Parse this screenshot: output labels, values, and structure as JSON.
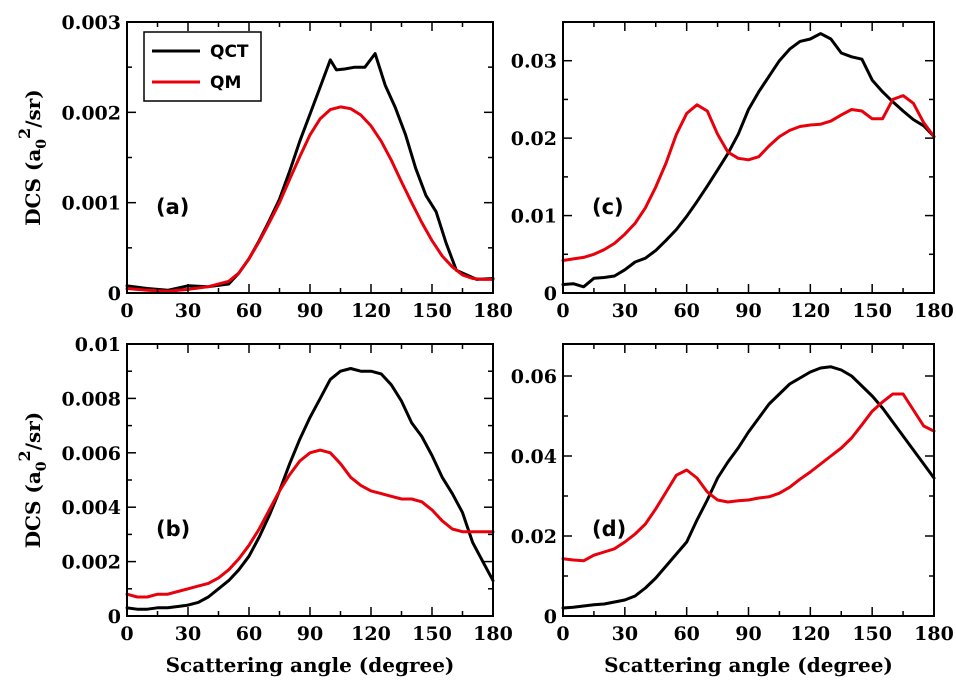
{
  "chart_data": [
    {
      "type": "line",
      "panel_label": "(a)",
      "ylabel": "DCS (a0^2/sr)",
      "xlabel": "",
      "xlim": [
        0,
        180
      ],
      "ylim": [
        0,
        0.003
      ],
      "xticks": [
        "0",
        "30",
        "60",
        "90",
        "120",
        "150",
        "180"
      ],
      "yticks": [
        "0",
        "0.001",
        "0.002",
        "0.003"
      ],
      "legend": {
        "position": "top-left",
        "entries": [
          "QCT",
          "QM"
        ]
      },
      "series": [
        {
          "name": "QCT",
          "color": "#000000",
          "x": [
            0,
            10,
            20,
            30,
            40,
            50,
            55,
            60,
            65,
            70,
            75,
            80,
            85,
            90,
            95,
            100,
            103,
            107,
            112,
            117,
            122,
            127,
            132,
            137,
            142,
            147,
            152,
            157,
            162,
            167,
            172,
            180
          ],
          "y": [
            8e-05,
            5e-05,
            3e-05,
            8e-05,
            7e-05,
            0.0001,
            0.00022,
            0.00038,
            0.00058,
            0.0008,
            0.00104,
            0.00135,
            0.00168,
            0.00198,
            0.00228,
            0.00258,
            0.00247,
            0.00248,
            0.0025,
            0.0025,
            0.00265,
            0.0023,
            0.00205,
            0.00175,
            0.00138,
            0.00108,
            0.0009,
            0.00055,
            0.00025,
            0.0002,
            0.00015,
            0.00016
          ]
        },
        {
          "name": "QM",
          "color": "#e8000b",
          "x": [
            0,
            10,
            20,
            30,
            40,
            50,
            55,
            60,
            65,
            70,
            75,
            80,
            85,
            90,
            95,
            100,
            105,
            110,
            115,
            120,
            125,
            130,
            135,
            140,
            145,
            150,
            155,
            160,
            165,
            170,
            175,
            180
          ],
          "y": [
            5e-05,
            3e-05,
            2e-05,
            4e-05,
            7e-05,
            0.00013,
            0.00022,
            0.00038,
            0.00057,
            0.00078,
            0.001,
            0.00126,
            0.00151,
            0.00175,
            0.00193,
            0.00203,
            0.00206,
            0.00204,
            0.00197,
            0.00185,
            0.00168,
            0.00147,
            0.00123,
            0.001,
            0.00078,
            0.00058,
            0.00041,
            0.00029,
            0.0002,
            0.00016,
            0.00015,
            0.00015
          ]
        }
      ]
    },
    {
      "type": "line",
      "panel_label": "(c)",
      "ylabel": "",
      "xlabel": "",
      "xlim": [
        0,
        180
      ],
      "ylim": [
        0,
        0.035
      ],
      "xticks": [
        "0",
        "30",
        "60",
        "90",
        "120",
        "150",
        "180"
      ],
      "yticks": [
        "0",
        "0.01",
        "0.02",
        "0.03"
      ],
      "series": [
        {
          "name": "QCT",
          "color": "#000000",
          "x": [
            0,
            5,
            10,
            15,
            20,
            25,
            30,
            35,
            40,
            45,
            50,
            55,
            60,
            65,
            70,
            75,
            80,
            85,
            90,
            95,
            100,
            105,
            110,
            115,
            120,
            125,
            130,
            135,
            140,
            145,
            150,
            155,
            160,
            165,
            170,
            175,
            180
          ],
          "y": [
            0.0011,
            0.0012,
            0.0008,
            0.0019,
            0.002,
            0.0022,
            0.003,
            0.004,
            0.0045,
            0.0055,
            0.0068,
            0.0082,
            0.0099,
            0.0118,
            0.0138,
            0.0159,
            0.018,
            0.0205,
            0.0237,
            0.026,
            0.028,
            0.03,
            0.0315,
            0.0325,
            0.0328,
            0.0335,
            0.0328,
            0.031,
            0.0305,
            0.0302,
            0.0275,
            0.026,
            0.0247,
            0.0235,
            0.0224,
            0.0216,
            0.0202
          ]
        },
        {
          "name": "QM",
          "color": "#e8000b",
          "x": [
            0,
            5,
            10,
            15,
            20,
            25,
            30,
            35,
            40,
            45,
            50,
            55,
            60,
            65,
            70,
            75,
            80,
            85,
            90,
            95,
            100,
            105,
            110,
            115,
            120,
            125,
            130,
            135,
            140,
            145,
            150,
            155,
            160,
            165,
            170,
            175,
            180
          ],
          "y": [
            0.0042,
            0.0044,
            0.0046,
            0.005,
            0.0056,
            0.0064,
            0.0076,
            0.009,
            0.011,
            0.0137,
            0.0168,
            0.0205,
            0.0232,
            0.0243,
            0.0235,
            0.0205,
            0.0182,
            0.0174,
            0.0172,
            0.0176,
            0.019,
            0.0202,
            0.021,
            0.0215,
            0.0217,
            0.0218,
            0.0222,
            0.023,
            0.0237,
            0.0235,
            0.0225,
            0.0225,
            0.025,
            0.0255,
            0.0245,
            0.022,
            0.0202
          ]
        }
      ]
    },
    {
      "type": "line",
      "panel_label": "(b)",
      "ylabel": "DCS (a0^2/sr)",
      "xlabel": "Scattering angle (degree)",
      "xlim": [
        0,
        180
      ],
      "ylim": [
        0,
        0.01
      ],
      "xticks": [
        "0",
        "30",
        "60",
        "90",
        "120",
        "150",
        "180"
      ],
      "yticks": [
        "0",
        "0.002",
        "0.004",
        "0.006",
        "0.008",
        "0.01"
      ],
      "series": [
        {
          "name": "QCT",
          "color": "#000000",
          "x": [
            0,
            5,
            10,
            15,
            20,
            25,
            30,
            35,
            40,
            45,
            50,
            55,
            60,
            65,
            70,
            75,
            80,
            85,
            90,
            95,
            100,
            105,
            110,
            115,
            120,
            125,
            130,
            135,
            140,
            145,
            150,
            155,
            160,
            165,
            170,
            175,
            180
          ],
          "y": [
            0.0003,
            0.00025,
            0.00025,
            0.0003,
            0.0003,
            0.00035,
            0.0004,
            0.0005,
            0.0007,
            0.001,
            0.0013,
            0.0017,
            0.0022,
            0.0029,
            0.0037,
            0.0046,
            0.0056,
            0.0065,
            0.0073,
            0.008,
            0.0087,
            0.009,
            0.0091,
            0.009,
            0.009,
            0.0089,
            0.0085,
            0.0079,
            0.0071,
            0.0066,
            0.0059,
            0.0051,
            0.0045,
            0.0038,
            0.0027,
            0.002,
            0.0013
          ]
        },
        {
          "name": "QM",
          "color": "#e8000b",
          "x": [
            0,
            5,
            10,
            15,
            20,
            25,
            30,
            35,
            40,
            45,
            50,
            55,
            60,
            65,
            70,
            75,
            80,
            85,
            90,
            95,
            100,
            105,
            110,
            115,
            120,
            125,
            130,
            135,
            140,
            145,
            150,
            155,
            160,
            165,
            170,
            175,
            180
          ],
          "y": [
            0.0008,
            0.0007,
            0.0007,
            0.0008,
            0.0008,
            0.0009,
            0.001,
            0.0011,
            0.0012,
            0.0014,
            0.0017,
            0.0021,
            0.0026,
            0.0032,
            0.0039,
            0.0046,
            0.0052,
            0.0057,
            0.006,
            0.0061,
            0.006,
            0.0056,
            0.0051,
            0.0048,
            0.0046,
            0.0045,
            0.0044,
            0.0043,
            0.0043,
            0.0042,
            0.0039,
            0.0035,
            0.0032,
            0.0031,
            0.0031,
            0.0031,
            0.0031
          ]
        }
      ]
    },
    {
      "type": "line",
      "panel_label": "(d)",
      "ylabel": "",
      "xlabel": "Scattering angle (degree)",
      "xlim": [
        0,
        180
      ],
      "ylim": [
        0,
        0.068
      ],
      "xticks": [
        "0",
        "30",
        "60",
        "90",
        "120",
        "150",
        "180"
      ],
      "yticks": [
        "0",
        "0.02",
        "0.04",
        "0.06"
      ],
      "series": [
        {
          "name": "QCT",
          "color": "#000000",
          "x": [
            0,
            5,
            10,
            15,
            20,
            25,
            30,
            35,
            40,
            45,
            50,
            55,
            60,
            65,
            70,
            75,
            80,
            85,
            90,
            95,
            100,
            105,
            110,
            115,
            120,
            125,
            130,
            135,
            140,
            145,
            150,
            155,
            160,
            165,
            170,
            175,
            180
          ],
          "y": [
            0.002,
            0.0022,
            0.0025,
            0.0028,
            0.003,
            0.0035,
            0.004,
            0.005,
            0.007,
            0.0095,
            0.0125,
            0.0155,
            0.0185,
            0.024,
            0.029,
            0.0345,
            0.0385,
            0.042,
            0.046,
            0.0495,
            0.053,
            0.0555,
            0.058,
            0.0595,
            0.061,
            0.062,
            0.0623,
            0.0615,
            0.06,
            0.0575,
            0.055,
            0.052,
            0.0485,
            0.045,
            0.0415,
            0.038,
            0.0345
          ]
        },
        {
          "name": "QM",
          "color": "#e8000b",
          "x": [
            0,
            5,
            10,
            15,
            20,
            25,
            30,
            35,
            40,
            45,
            50,
            55,
            60,
            65,
            70,
            75,
            80,
            85,
            90,
            95,
            100,
            105,
            110,
            115,
            120,
            125,
            130,
            135,
            140,
            145,
            150,
            155,
            160,
            165,
            170,
            175,
            180
          ],
          "y": [
            0.0143,
            0.014,
            0.0138,
            0.0152,
            0.016,
            0.0168,
            0.0185,
            0.0205,
            0.023,
            0.0268,
            0.031,
            0.0352,
            0.0365,
            0.0345,
            0.031,
            0.029,
            0.0285,
            0.0288,
            0.029,
            0.0295,
            0.0298,
            0.0307,
            0.0322,
            0.0342,
            0.036,
            0.038,
            0.04,
            0.042,
            0.0445,
            0.0478,
            0.0512,
            0.0535,
            0.0555,
            0.0555,
            0.0515,
            0.0475,
            0.0462
          ]
        }
      ]
    }
  ]
}
